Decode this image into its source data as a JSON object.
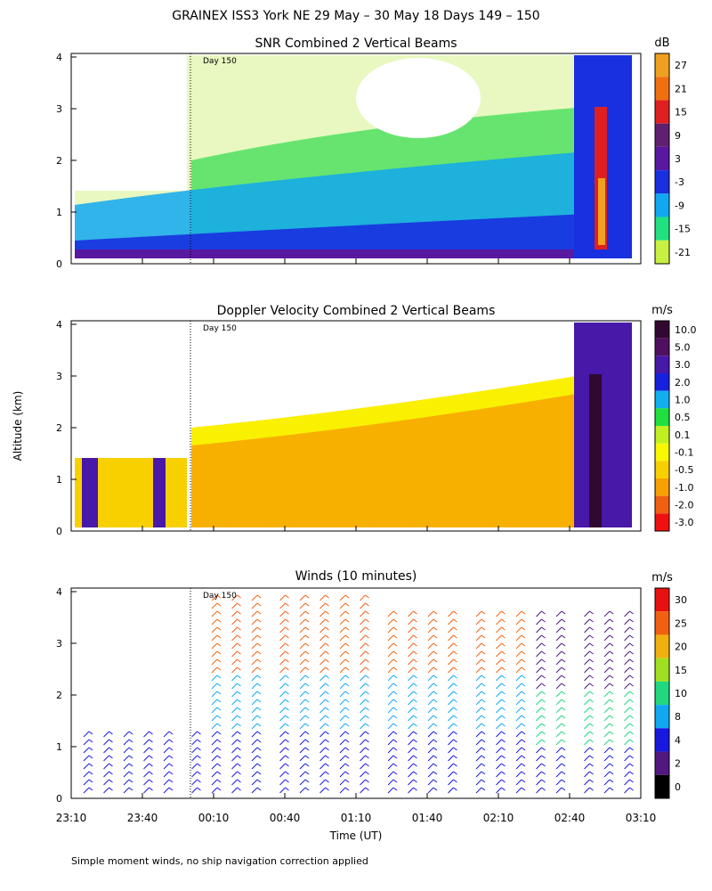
{
  "figure_title": "GRAINEX ISS3 York NE  29 May – 30 May 18 Days 149 – 150",
  "y_axis_label": "Altitude (km)",
  "x_axis_label": "Time (UT)",
  "footnote": "Simple moment winds, no ship navigation correction applied",
  "day_marker": "Day 150",
  "x_ticks": [
    "23:10",
    "23:40",
    "00:10",
    "00:40",
    "01:10",
    "01:40",
    "02:10",
    "02:40",
    "03:10"
  ],
  "y_ticks": [
    "0",
    "1",
    "2",
    "3",
    "4"
  ],
  "chart_data": [
    {
      "type": "heatmap",
      "title": "SNR Combined 2 Vertical Beams",
      "units": "dB",
      "ylim": [
        0,
        4
      ],
      "xlim": [
        "23:10",
        "03:10"
      ],
      "colorbar_labels": [
        "27",
        "21",
        "15",
        "9",
        "3",
        "-3",
        "-9",
        "-15",
        "-21"
      ],
      "colorbar_colors": [
        "#f0a020",
        "#f07010",
        "#e02020",
        "#602070",
        "#5818a0",
        "#1830e0",
        "#10a8f0",
        "#20e080",
        "#c8f040"
      ]
    },
    {
      "type": "heatmap",
      "title": "Doppler Velocity Combined 2 Vertical Beams",
      "units": "m/s",
      "ylim": [
        0,
        4
      ],
      "xlim": [
        "23:10",
        "03:10"
      ],
      "colorbar_labels": [
        "10.0",
        "5.0",
        "3.0",
        "2.0",
        "1.0",
        "0.5",
        "0.1",
        "-0.1",
        "-0.5",
        "-1.0",
        "-2.0",
        "-3.0"
      ],
      "colorbar_colors": [
        "#300830",
        "#501060",
        "#4818a8",
        "#1820e0",
        "#10b0f0",
        "#20e040",
        "#c0f020",
        "#f8f800",
        "#f8d000",
        "#f8a000",
        "#f06010",
        "#f01010"
      ]
    },
    {
      "type": "scatter",
      "title": "Winds (10 minutes)",
      "units": "m/s",
      "ylim": [
        0,
        4
      ],
      "xlim": [
        "23:10",
        "03:10"
      ],
      "colorbar_labels": [
        "30",
        "25",
        "20",
        "15",
        "10",
        "8",
        "4",
        "2",
        "0"
      ],
      "colorbar_colors": [
        "#e81010",
        "#f06010",
        "#f0b010",
        "#a0e020",
        "#20d880",
        "#10a8f0",
        "#1818e0",
        "#501880",
        "#000000"
      ]
    }
  ]
}
